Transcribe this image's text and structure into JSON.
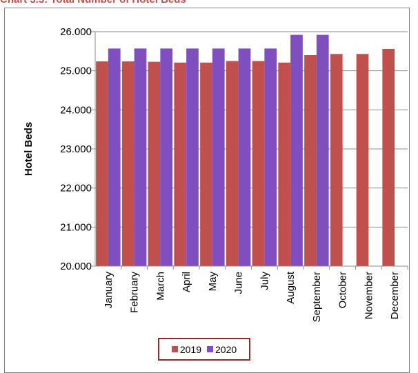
{
  "chart_data": {
    "type": "bar",
    "title": "Chart 3.3: Total Number of Hotel Beds",
    "xlabel": "",
    "ylabel": "Hotel Beds",
    "ylim": [
      20000,
      26000
    ],
    "ytick_values": [
      20000,
      21000,
      22000,
      23000,
      24000,
      25000,
      26000
    ],
    "yticks": [
      "20.000",
      "21.000",
      "22.000",
      "23.000",
      "24.000",
      "25.000",
      "26.000"
    ],
    "categories": [
      "January",
      "February",
      "March",
      "April",
      "May",
      "June",
      "July",
      "August",
      "September",
      "October",
      "November",
      "December"
    ],
    "series": [
      {
        "name": "2019",
        "color": "#c0504d",
        "values": [
          25240,
          25240,
          25230,
          25210,
          25210,
          25250,
          25250,
          25210,
          25400,
          25430,
          25430,
          25560
        ]
      },
      {
        "name": "2020",
        "color": "#7f4fbf",
        "values": [
          25570,
          25570,
          25570,
          25570,
          25570,
          25570,
          25570,
          25920,
          25920,
          null,
          null,
          null
        ]
      }
    ],
    "grid": true,
    "legend_position": "bottom"
  }
}
